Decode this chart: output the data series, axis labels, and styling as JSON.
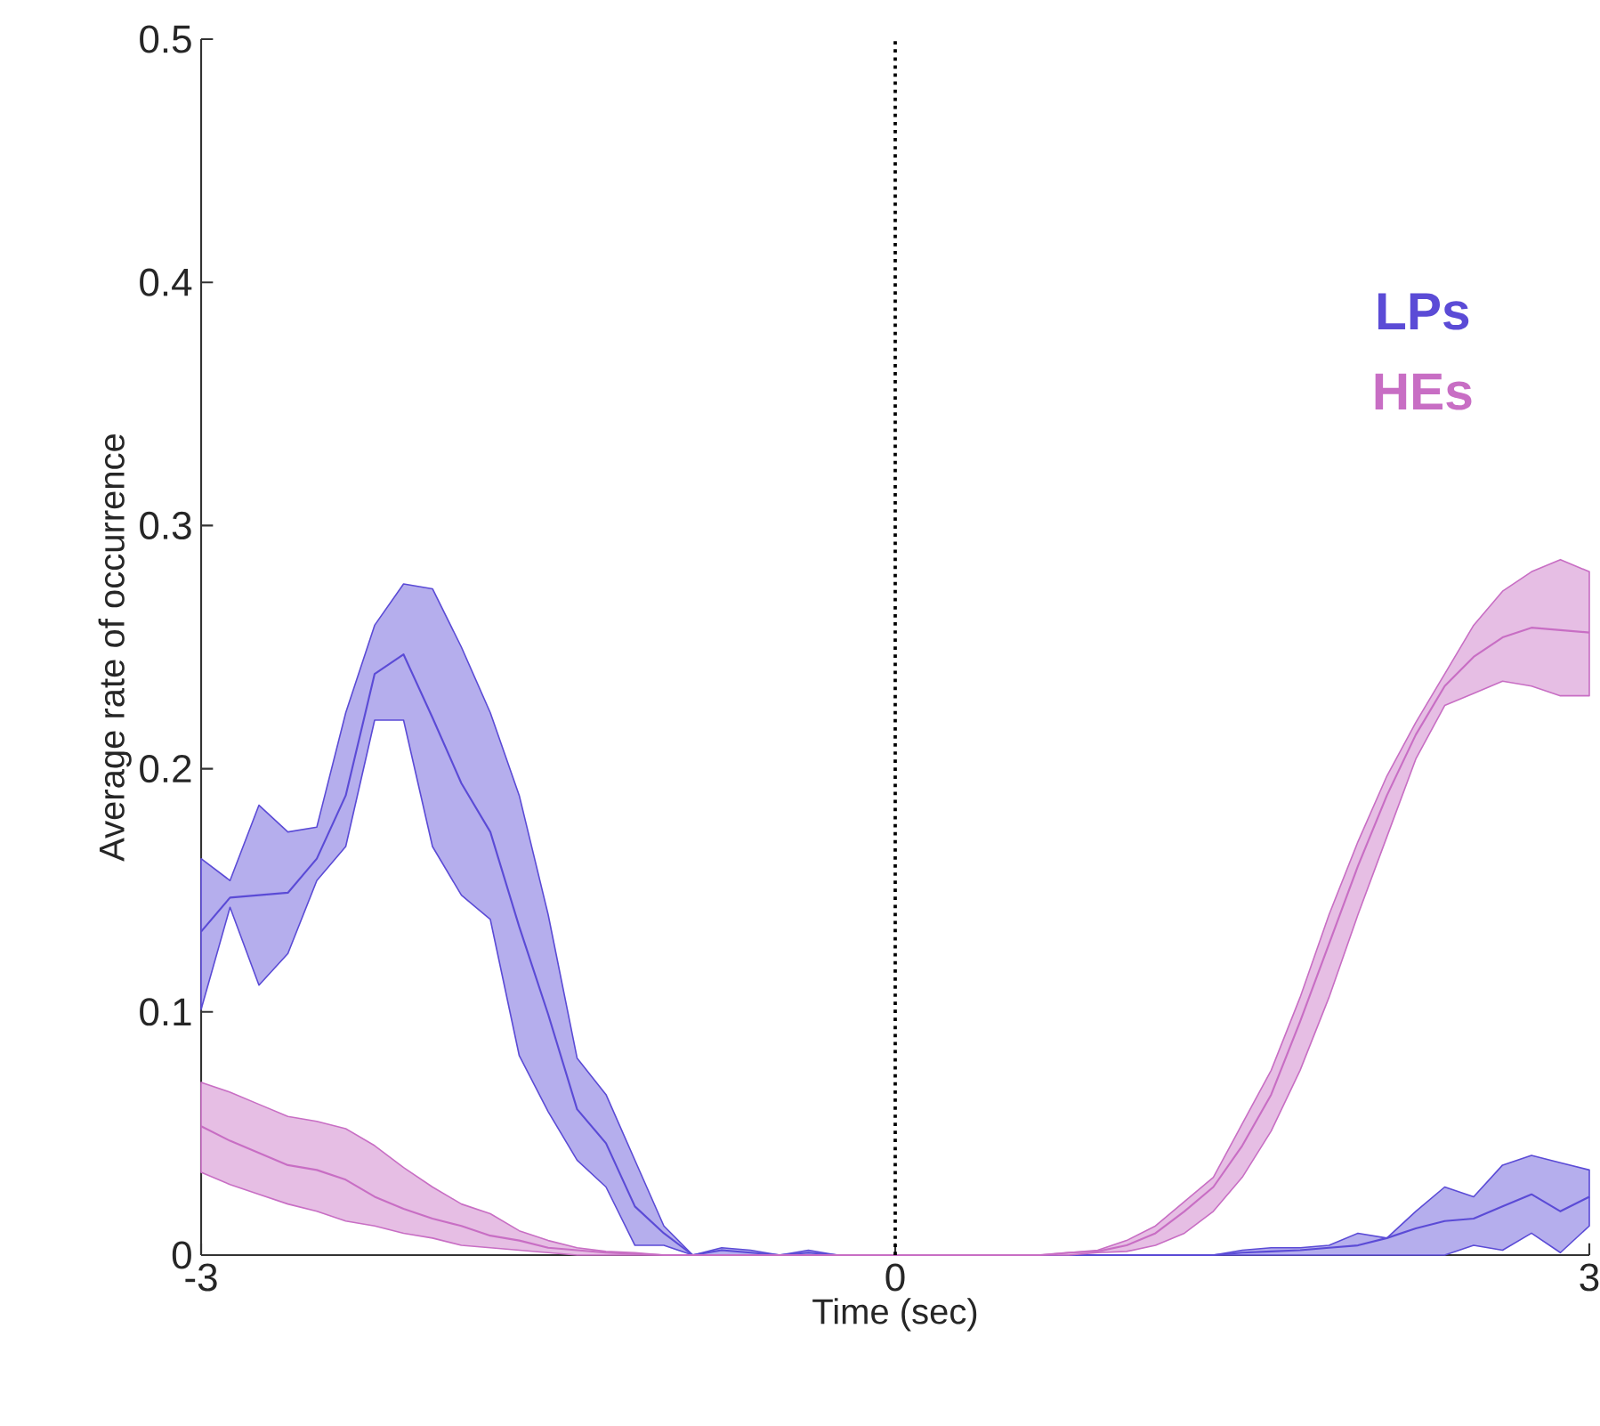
{
  "chart_data": {
    "type": "line",
    "xlabel": "Time (sec)",
    "ylabel": "Average rate of occurrence",
    "x": [
      -3,
      -2.875,
      -2.75,
      -2.625,
      -2.5,
      -2.375,
      -2.25,
      -2.125,
      -2,
      -1.875,
      -1.75,
      -1.625,
      -1.5,
      -1.375,
      -1.25,
      -1.125,
      -1,
      -0.875,
      -0.75,
      -0.625,
      -0.5,
      -0.375,
      -0.25,
      -0.125,
      0,
      0.125,
      0.25,
      0.375,
      0.5,
      0.625,
      0.75,
      0.875,
      1,
      1.125,
      1.25,
      1.375,
      1.5,
      1.625,
      1.75,
      1.875,
      2,
      2.125,
      2.25,
      2.375,
      2.5,
      2.625,
      2.75,
      2.875,
      3
    ],
    "series": [
      {
        "name": "LPs",
        "color": "#5b4bd6",
        "values": [
          0.133,
          0.147,
          0.148,
          0.149,
          0.163,
          0.189,
          0.239,
          0.247,
          0.221,
          0.194,
          0.174,
          0.135,
          0.099,
          0.06,
          0.046,
          0.02,
          0.009,
          0,
          0.002,
          0.001,
          0,
          0.001,
          0,
          0,
          0,
          0,
          0,
          0,
          0,
          0,
          0,
          0,
          0,
          0,
          0,
          0,
          0.001,
          0.0015,
          0.002,
          0.003,
          0.004,
          0.007,
          0.011,
          0.014,
          0.015,
          0.02,
          0.025,
          0.018,
          0.024
        ],
        "upper": [
          0.163,
          0.154,
          0.185,
          0.174,
          0.176,
          0.223,
          0.259,
          0.276,
          0.274,
          0.25,
          0.223,
          0.189,
          0.14,
          0.081,
          0.066,
          0.039,
          0.012,
          0,
          0.003,
          0.002,
          0,
          0.002,
          0,
          0,
          0,
          0,
          0,
          0,
          0,
          0,
          0,
          0,
          0,
          0,
          0,
          0,
          0.002,
          0.003,
          0.003,
          0.004,
          0.009,
          0.007,
          0.018,
          0.028,
          0.024,
          0.037,
          0.041,
          0.038,
          0.035
        ],
        "lower": [
          0.101,
          0.143,
          0.111,
          0.124,
          0.154,
          0.168,
          0.22,
          0.22,
          0.168,
          0.148,
          0.138,
          0.082,
          0.059,
          0.039,
          0.028,
          0.004,
          0.004,
          0,
          0,
          0,
          0,
          0,
          0,
          0,
          0,
          0,
          0,
          0,
          0,
          0,
          0,
          0,
          0,
          0,
          0,
          0,
          0,
          0,
          0,
          0,
          0,
          0,
          0,
          0,
          0.004,
          0.002,
          0.009,
          0.001,
          0.012
        ]
      },
      {
        "name": "HEs",
        "color": "#c86ec4",
        "values": [
          0.053,
          0.047,
          0.042,
          0.037,
          0.035,
          0.031,
          0.024,
          0.019,
          0.015,
          0.012,
          0.008,
          0.006,
          0.003,
          0.002,
          0.001,
          0.0005,
          0,
          0,
          0,
          0,
          0,
          0,
          0,
          0,
          0,
          0,
          0,
          0,
          0,
          0,
          0.001,
          0.0015,
          0.004,
          0.009,
          0.018,
          0.028,
          0.045,
          0.066,
          0.096,
          0.128,
          0.16,
          0.189,
          0.214,
          0.234,
          0.246,
          0.254,
          0.258,
          0.257,
          0.256
        ],
        "upper": [
          0.071,
          0.067,
          0.062,
          0.057,
          0.055,
          0.052,
          0.045,
          0.036,
          0.028,
          0.021,
          0.017,
          0.01,
          0.006,
          0.003,
          0.0015,
          0.001,
          0,
          0,
          0,
          0,
          0,
          0,
          0,
          0,
          0,
          0,
          0,
          0,
          0,
          0,
          0.001,
          0.002,
          0.006,
          0.012,
          0.022,
          0.032,
          0.054,
          0.076,
          0.106,
          0.14,
          0.17,
          0.197,
          0.219,
          0.239,
          0.259,
          0.273,
          0.281,
          0.286,
          0.281
        ],
        "lower": [
          0.034,
          0.029,
          0.025,
          0.021,
          0.018,
          0.014,
          0.012,
          0.009,
          0.007,
          0.004,
          0.003,
          0.002,
          0.001,
          0,
          0,
          0,
          0,
          0,
          0,
          0,
          0,
          0,
          0,
          0,
          0,
          0,
          0,
          0,
          0,
          0,
          0,
          0.001,
          0.0015,
          0.004,
          0.009,
          0.018,
          0.032,
          0.051,
          0.076,
          0.106,
          0.14,
          0.172,
          0.204,
          0.226,
          0.231,
          0.236,
          0.234,
          0.23,
          0.23
        ]
      }
    ],
    "xlim": [
      -3,
      3
    ],
    "ylim": [
      0,
      0.5
    ],
    "xticks": [
      -3,
      0,
      3
    ],
    "yticks": [
      0,
      0.1,
      0.2,
      0.3,
      0.4,
      0.5
    ],
    "ref_lines": [
      {
        "axis": "x",
        "value": 0,
        "color": "#000000",
        "line_style": "dotted"
      }
    ],
    "legend": "right",
    "grid": false,
    "marker": "none",
    "line_style": "solid"
  }
}
